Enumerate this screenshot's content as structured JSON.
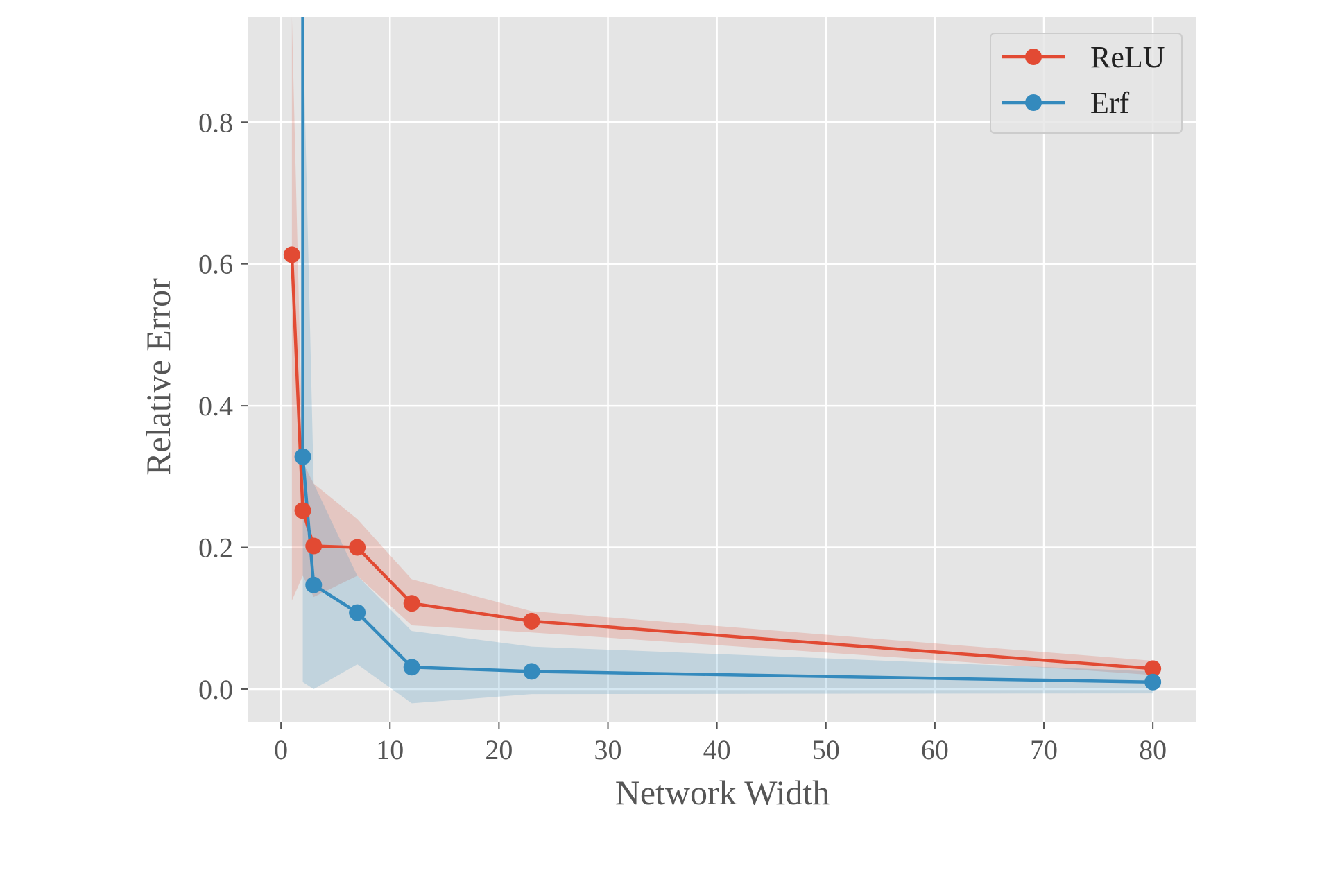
{
  "chart_data": {
    "type": "line",
    "xlabel": "Network Width",
    "ylabel": "Relative Error",
    "xlim": [
      -3,
      84
    ],
    "ylim": [
      -0.047,
      0.948
    ],
    "xticks": [
      0,
      10,
      20,
      30,
      40,
      50,
      60,
      70,
      80
    ],
    "xtick_labels": [
      "0",
      "10",
      "20",
      "30",
      "40",
      "50",
      "60",
      "70",
      "80"
    ],
    "yticks": [
      0.0,
      0.2,
      0.4,
      0.6,
      0.8
    ],
    "ytick_labels": [
      "0.0",
      "0.2",
      "0.4",
      "0.6",
      "0.8"
    ],
    "grid": true,
    "legend_position": "top-right",
    "colors": {
      "background": "#e5e5e5",
      "grid": "#ffffff"
    },
    "series": [
      {
        "name": "ReLU",
        "color": "#e24a33",
        "x": [
          1,
          2,
          3,
          7,
          12,
          23,
          80
        ],
        "y": [
          0.613,
          0.252,
          0.202,
          0.2,
          0.121,
          0.096,
          0.029
        ],
        "band_upper": [
          0.95,
          0.32,
          0.29,
          0.24,
          0.155,
          0.11,
          0.04
        ],
        "band_lower": [
          0.125,
          0.16,
          0.13,
          0.16,
          0.09,
          0.08,
          0.02
        ]
      },
      {
        "name": "Erf",
        "color": "#348abd",
        "x": [
          2,
          3,
          7,
          12,
          23,
          80
        ],
        "y": [
          0.328,
          0.147,
          0.108,
          0.031,
          0.025,
          0.01
        ],
        "y_offscale_start": {
          "x": 2,
          "y": 0.948
        },
        "band_upper": [
          0.948,
          0.29,
          0.16,
          0.082,
          0.06,
          0.025
        ],
        "band_lower": [
          0.01,
          0.0,
          0.035,
          -0.02,
          -0.007,
          -0.006
        ]
      }
    ]
  }
}
